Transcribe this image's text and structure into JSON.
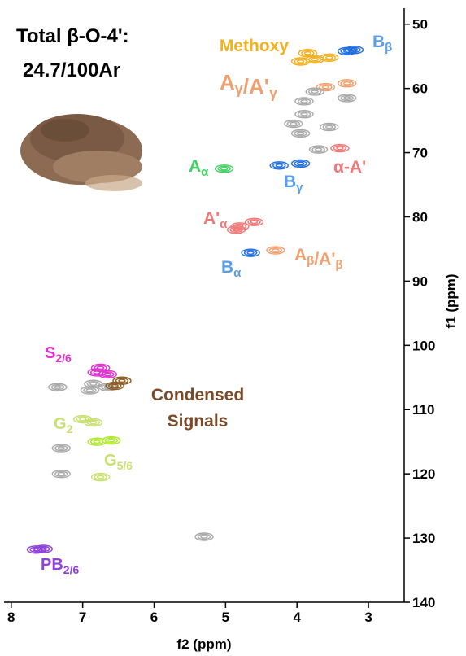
{
  "chart_data": {
    "type": "scatter",
    "title_lines": [
      "Total β-O-4':",
      "24.7/100Ar"
    ],
    "x_label": "f2 (ppm)",
    "y_label": "f1 (ppm)",
    "xlim": [
      8.1,
      2.5
    ],
    "ylim": [
      47.5,
      140
    ],
    "xticks": [
      8,
      7,
      6,
      5,
      4,
      3
    ],
    "yticks": [
      50,
      60,
      70,
      80,
      90,
      100,
      110,
      120,
      130,
      140
    ],
    "series": [
      {
        "color": "#f0b020",
        "x": [
          3.95,
          3.75,
          3.55,
          3.85
        ],
        "y": [
          55.8,
          55.5,
          55.2,
          54.5
        ]
      },
      {
        "color": "#1e6ee0",
        "x": [
          3.3,
          3.2,
          4.25,
          3.95,
          4.65
        ],
        "y": [
          54.2,
          54,
          72,
          71.7,
          85.6
        ]
      },
      {
        "color": "#f0a070",
        "x": [
          3.6,
          3.3,
          4.3
        ],
        "y": [
          59.8,
          59.2,
          85.2
        ]
      },
      {
        "color": "#a8a8a8",
        "x": [
          3.3,
          3.9,
          3.75,
          3.9,
          4.05,
          3.95,
          3.55,
          6.85,
          7.35,
          6.65,
          7.3,
          5.3,
          3.7,
          7.3,
          6.9
        ],
        "y": [
          61.5,
          62,
          60.5,
          64,
          65.5,
          67,
          66,
          106,
          106.5,
          106.5,
          120,
          129.8,
          69.5,
          116,
          107
        ]
      },
      {
        "color": "#40d060",
        "x": [
          5.02
        ],
        "y": [
          72.5
        ]
      },
      {
        "color": "#f07878",
        "x": [
          3.4,
          4.8,
          4.6,
          4.85
        ],
        "y": [
          69.3,
          81.5,
          80.8,
          82
        ]
      },
      {
        "color": "#e030d0",
        "x": [
          6.75,
          6.65,
          6.8
        ],
        "y": [
          103.5,
          104.5,
          104.2
        ]
      },
      {
        "color": "#8b5a20",
        "x": [
          6.45,
          6.55
        ],
        "y": [
          105.5,
          106.3
        ]
      },
      {
        "color": "#c8e070",
        "x": [
          7.0,
          6.85,
          6.75
        ],
        "y": [
          111.5,
          112,
          120.5
        ]
      },
      {
        "color": "#b0e830",
        "x": [
          6.8,
          6.6
        ],
        "y": [
          115,
          114.8
        ]
      },
      {
        "color": "#9040d8",
        "x": [
          7.65,
          7.55
        ],
        "y": [
          131.8,
          131.7
        ]
      }
    ],
    "annotations": [
      {
        "color": "#f0b020",
        "parts": [
          {
            "text": "Methoxy"
          }
        ]
      },
      {
        "color": "#5a9ee8",
        "parts": [
          {
            "text": "B",
            "sub": "β"
          }
        ]
      },
      {
        "color": "#f0a070",
        "parts": [
          {
            "text": "A",
            "sub": "γ"
          },
          {
            "text": "/A'",
            "sub": "γ"
          }
        ]
      },
      {
        "color": "#40d060",
        "parts": [
          {
            "text": "A",
            "sub": "α"
          }
        ]
      },
      {
        "color": "#5a9ee8",
        "parts": [
          {
            "text": "B",
            "sub": "γ"
          }
        ]
      },
      {
        "color": "#f07878",
        "parts": [
          {
            "text": "α-A'"
          }
        ]
      },
      {
        "color": "#f07878",
        "parts": [
          {
            "text": "A'",
            "sub": "α"
          }
        ]
      },
      {
        "color": "#5a9ee8",
        "parts": [
          {
            "text": "B",
            "sub": "α"
          }
        ]
      },
      {
        "color": "#f0a070",
        "parts": [
          {
            "text": "A",
            "sub": "β"
          },
          {
            "text": "/A'",
            "sub": "β"
          }
        ]
      },
      {
        "color": "#e030d0",
        "parts": [
          {
            "text": "S",
            "sub": "2/6"
          }
        ]
      },
      {
        "color": "#7a4a28",
        "parts": [
          {
            "text": "Condensed"
          }
        ]
      },
      {
        "color": "#7a4a28",
        "parts": [
          {
            "text": "Signals"
          }
        ]
      },
      {
        "color": "#c8e070",
        "parts": [
          {
            "text": "G",
            "sub": "2"
          }
        ]
      },
      {
        "color": "#c8e070",
        "parts": [
          {
            "text": "G",
            "sub": "5/6"
          }
        ]
      },
      {
        "color": "#9040d8",
        "parts": [
          {
            "text": "PB",
            "sub": "2/6"
          }
        ]
      }
    ]
  }
}
